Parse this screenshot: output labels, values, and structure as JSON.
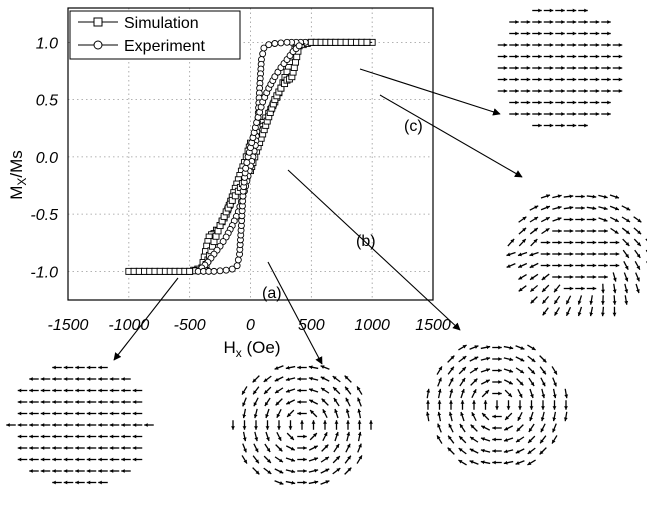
{
  "chart_data": {
    "type": "line",
    "xlabel": "H",
    "xlabel_sub": "x",
    "xlabel_unit": " (Oe)",
    "ylabel": "M",
    "ylabel_sub": "X",
    "ylabel_tail": "/Ms",
    "xlim": [
      -1500,
      1500
    ],
    "ylim": [
      -1.25,
      1.3
    ],
    "xticks": [
      -1500,
      -1000,
      -500,
      0,
      500,
      1000,
      1500
    ],
    "xtick_labels": [
      "-1500",
      "-1000",
      "-500",
      "0",
      "500",
      "1000",
      "1500"
    ],
    "yticks": [
      1.0,
      0.5,
      0.0,
      -0.5,
      -1.0
    ],
    "ytick_labels": [
      "1.0",
      "0.5",
      "0.0",
      "-0.5",
      "-1.0"
    ],
    "grid": true,
    "legend_position": "top-left",
    "series": [
      {
        "name": "Simulation",
        "marker": "square",
        "branches": [
          {
            "x": [
              1000,
              700,
              500,
              400,
              380,
              350,
              300,
              250,
              200,
              150,
              100,
              50,
              0,
              -20,
              -50,
              -100,
              -150,
              -200,
              -250,
              -280,
              -300,
              -320,
              -340,
              -360,
              -400,
              -500,
              -700,
              -1000
            ],
            "y": [
              1.0,
              1.0,
              1.0,
              0.99,
              0.98,
              0.9,
              0.74,
              0.6,
              0.48,
              0.38,
              0.3,
              0.2,
              0.12,
              0.05,
              -0.05,
              -0.2,
              -0.35,
              -0.5,
              -0.6,
              -0.64,
              -0.67,
              -0.68,
              -0.7,
              -0.78,
              -0.97,
              -1.0,
              -1.0,
              -1.0
            ]
          },
          {
            "x": [
              -1000,
              -700,
              -500,
              -400,
              -380,
              -350,
              -300,
              -250,
              -200,
              -150,
              -100,
              -50,
              0,
              20,
              50,
              100,
              150,
              200,
              250,
              280,
              300,
              320,
              340,
              360,
              400,
              500,
              700,
              1000
            ],
            "y": [
              -1.0,
              -1.0,
              -1.0,
              -0.99,
              -0.98,
              -0.9,
              -0.74,
              -0.6,
              -0.48,
              -0.38,
              -0.3,
              -0.2,
              -0.12,
              -0.05,
              0.05,
              0.2,
              0.35,
              0.5,
              0.6,
              0.64,
              0.67,
              0.68,
              0.7,
              0.78,
              0.97,
              1.0,
              1.0,
              1.0
            ]
          }
        ]
      },
      {
        "name": "Experiment",
        "marker": "circle",
        "branches": [
          {
            "x": [
              450,
              300,
              200,
              150,
              110,
              90,
              75,
              60,
              40,
              20,
              0,
              -50,
              -100,
              -150,
              -200,
              -250,
              -300,
              -350,
              -400,
              -430
            ],
            "y": [
              1.0,
              1.0,
              0.99,
              0.98,
              0.95,
              0.85,
              0.6,
              0.3,
              0.1,
              0.0,
              -0.08,
              -0.3,
              -0.48,
              -0.6,
              -0.7,
              -0.78,
              -0.85,
              -0.92,
              -0.97,
              -0.99
            ]
          },
          {
            "x": [
              -430,
              -300,
              -200,
              -150,
              -110,
              -90,
              -75,
              -60,
              -40,
              -20,
              0,
              50,
              100,
              150,
              200,
              250,
              300,
              350,
              400,
              450
            ],
            "y": [
              -1.0,
              -1.0,
              -0.99,
              -0.98,
              -0.95,
              -0.85,
              -0.6,
              -0.3,
              -0.1,
              0.0,
              0.08,
              0.3,
              0.48,
              0.6,
              0.7,
              0.78,
              0.85,
              0.92,
              0.97,
              0.99
            ]
          }
        ]
      }
    ],
    "annotations": [
      "(a)",
      "(b)",
      "(c)"
    ]
  },
  "insets": [
    {
      "id": "sat-positive",
      "pattern": "uniform-right"
    },
    {
      "id": "c",
      "pattern": "c-state"
    },
    {
      "id": "sat-negative",
      "pattern": "uniform-left"
    },
    {
      "id": "a",
      "pattern": "vortex-a"
    },
    {
      "id": "b",
      "pattern": "vortex-b"
    }
  ]
}
